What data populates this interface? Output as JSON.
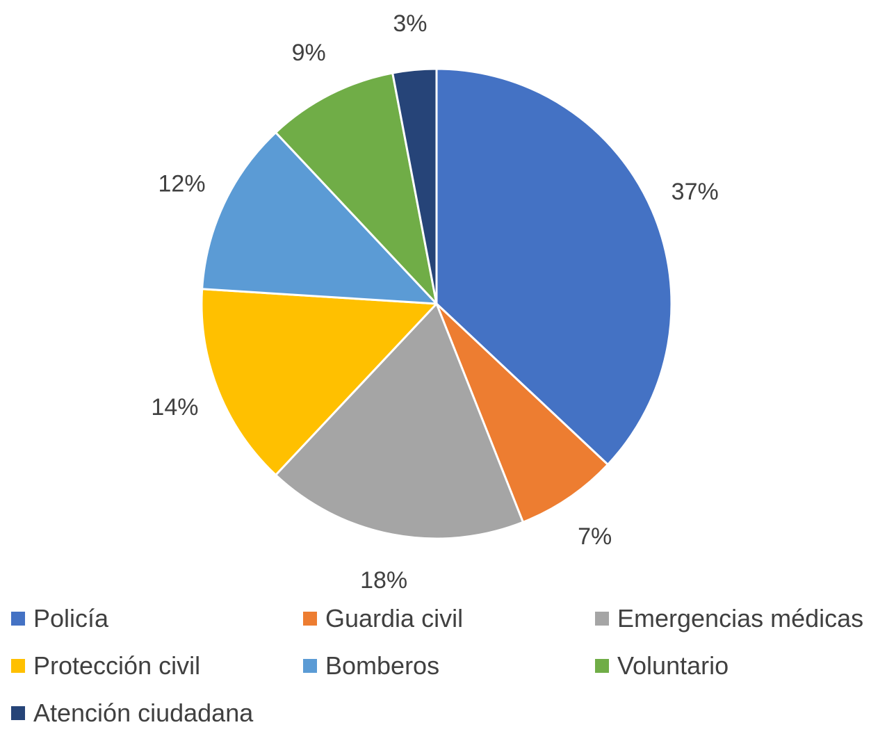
{
  "chart_data": {
    "type": "pie",
    "title": "",
    "categories": [
      "Policía",
      "Guardia civil",
      "Emergencias médicas",
      "Protección civil",
      "Bomberos",
      "Voluntario",
      "Atención ciudadana"
    ],
    "values": [
      37,
      7,
      18,
      14,
      12,
      9,
      3
    ],
    "value_labels": [
      "37%",
      "7%",
      "18%",
      "14%",
      "12%",
      "9%",
      "3%"
    ],
    "colors": [
      "#4472C4",
      "#ED7D31",
      "#A5A5A5",
      "#FFC000",
      "#5B9BD5",
      "#70AD47",
      "#264478"
    ],
    "legend_position": "bottom",
    "start_angle": "top (12 o'clock), clockwise"
  }
}
